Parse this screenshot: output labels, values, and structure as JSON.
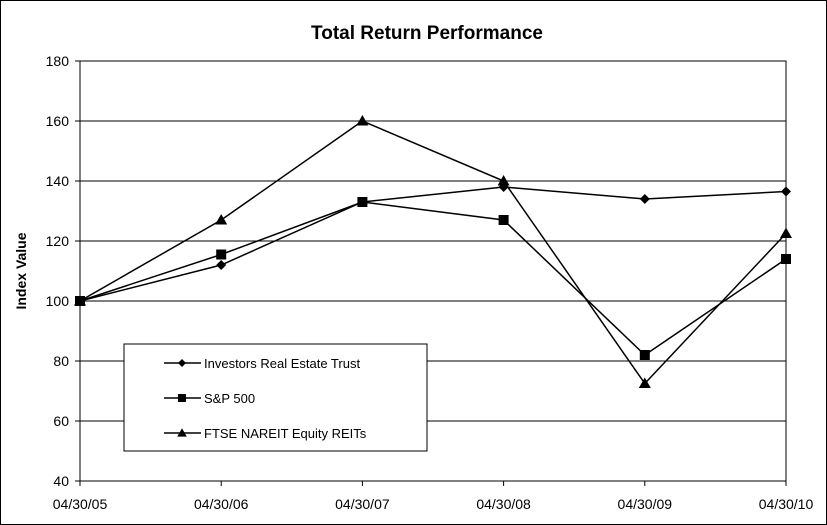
{
  "chart_data": {
    "type": "line",
    "title": "Total Return Performance",
    "xlabel": "",
    "ylabel": "Index Value",
    "categories": [
      "04/30/05",
      "04/30/06",
      "04/30/07",
      "04/30/08",
      "04/30/09",
      "04/30/10"
    ],
    "ylim": [
      40,
      180
    ],
    "yticks": [
      40,
      60,
      80,
      100,
      120,
      140,
      160,
      180
    ],
    "grid": true,
    "legend_position": "lower-left",
    "series": [
      {
        "name": "Investors Real Estate Trust",
        "marker": "diamond",
        "color": "#000000",
        "values": [
          100,
          112,
          133,
          138,
          134,
          136.5
        ]
      },
      {
        "name": "S&P 500",
        "marker": "square",
        "color": "#000000",
        "values": [
          100,
          115.5,
          133,
          127,
          82,
          114
        ]
      },
      {
        "name": "FTSE NAREIT Equity REITs",
        "marker": "triangle",
        "color": "#000000",
        "values": [
          100,
          127,
          160,
          140,
          72.5,
          122.5
        ]
      }
    ]
  }
}
